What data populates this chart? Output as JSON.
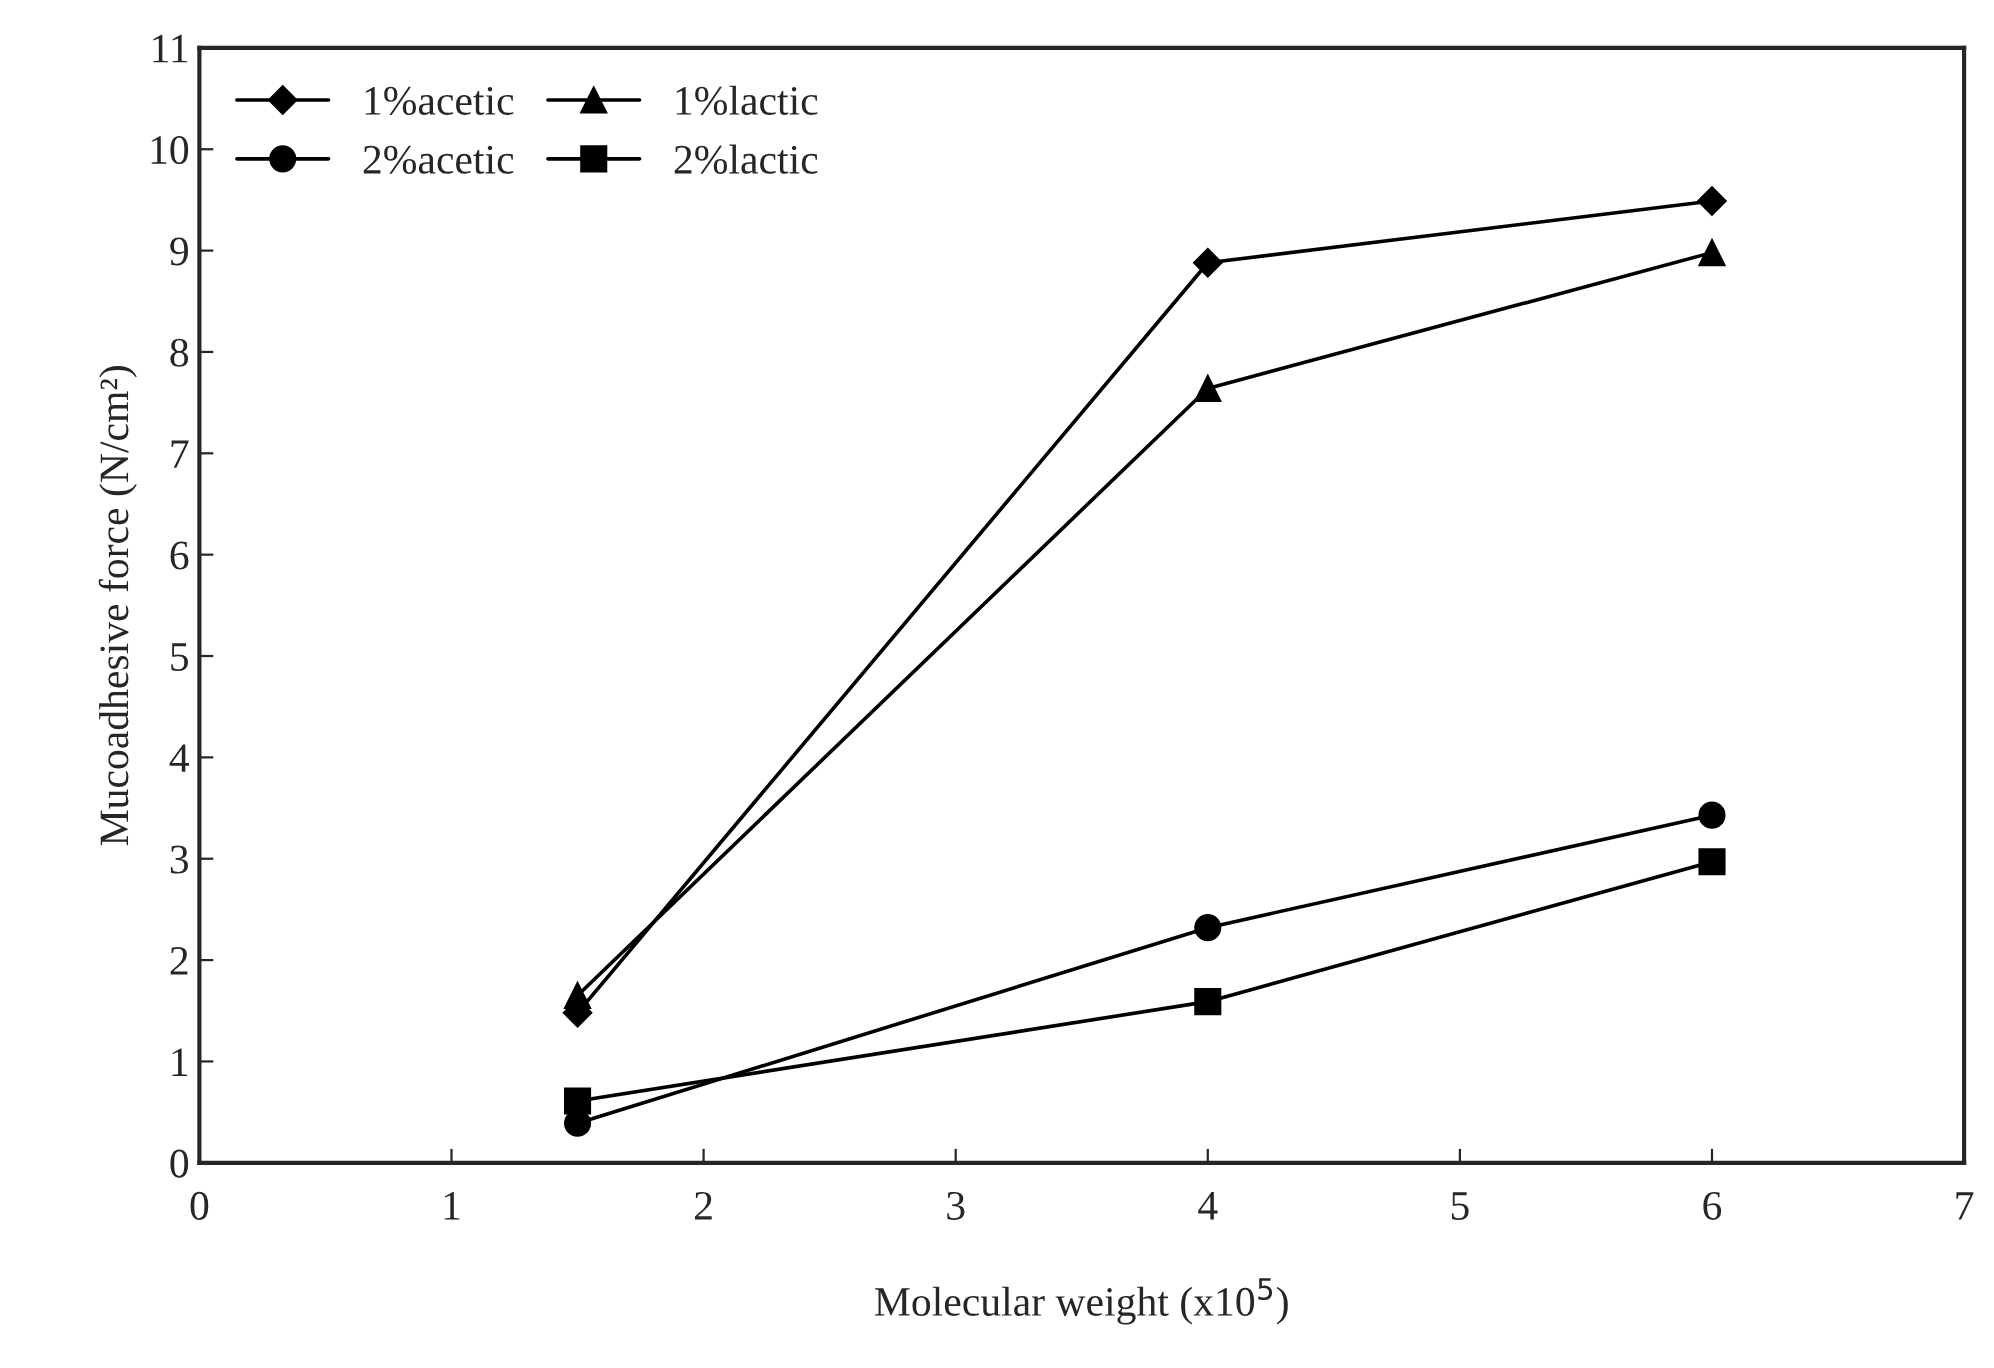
{
  "chart_data": {
    "type": "line",
    "xlabel": "Molecular weight (x10$^{5}$)",
    "ylabel": "Mucoadhesive force (N/cm²)",
    "xlim": [
      0,
      7
    ],
    "xticks": [
      0,
      1,
      2,
      3,
      4,
      5,
      6,
      7
    ],
    "ylim": [
      0,
      11
    ],
    "yticks": [
      0,
      1,
      2,
      3,
      4,
      5,
      6,
      7,
      8,
      9,
      10,
      11
    ],
    "grid": false,
    "legend": "top left",
    "line_style": "solid",
    "series": [
      {
        "name": "1%acetic",
        "color": "#000000",
        "marker": "diamond",
        "x": [
          1.5,
          4,
          6
        ],
        "values": [
          1.48,
          8.88,
          9.49
        ]
      },
      {
        "name": "2%acetic",
        "color": "#000000",
        "marker": "circle",
        "x": [
          1.5,
          4,
          6
        ],
        "values": [
          0.39,
          2.32,
          3.43
        ]
      },
      {
        "name": "1%lactic",
        "color": "#000000",
        "marker": "triangle",
        "x": [
          1.5,
          4,
          6
        ],
        "values": [
          1.65,
          7.64,
          8.98
        ]
      },
      {
        "name": "2%lactic",
        "color": "#000000",
        "marker": "square",
        "x": [
          1.5,
          4,
          6
        ],
        "values": [
          0.61,
          1.59,
          2.97
        ]
      }
    ]
  }
}
